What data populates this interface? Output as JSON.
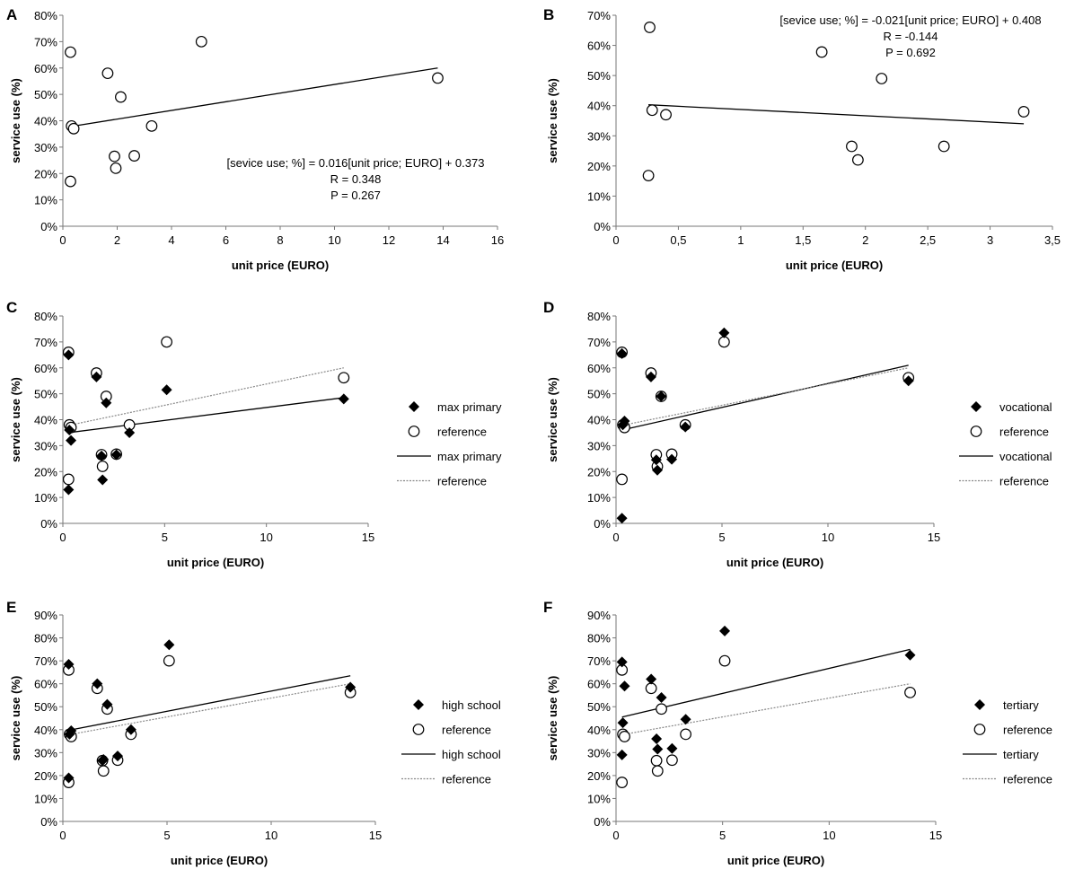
{
  "figure": {
    "background": "#ffffff",
    "ink": "#000000",
    "reference_line": "#888888"
  },
  "chart_data": [
    {
      "id": "A",
      "type": "scatter",
      "xlabel": "unit price (EURO)",
      "ylabel": "service use (%)",
      "xlim": [
        0,
        16
      ],
      "ylim": [
        0,
        0.8
      ],
      "xticks": [
        0,
        2,
        4,
        6,
        8,
        10,
        12,
        14,
        16
      ],
      "xtick_labels": [
        "0",
        "2",
        "4",
        "6",
        "8",
        "10",
        "12",
        "14",
        "16"
      ],
      "yticks": [
        0,
        0.1,
        0.2,
        0.3,
        0.4,
        0.5,
        0.6,
        0.7,
        0.8
      ],
      "ytick_labels": [
        "0%",
        "10%",
        "20%",
        "30%",
        "40%",
        "50%",
        "60%",
        "70%",
        "80%"
      ],
      "series": [
        {
          "name": "service use",
          "marker": "circle",
          "x": [
            0.28,
            0.28,
            0.32,
            0.4,
            1.65,
            1.9,
            1.95,
            2.13,
            2.63,
            3.27,
            5.1,
            13.8
          ],
          "y": [
            0.66,
            0.17,
            0.38,
            0.37,
            0.58,
            0.265,
            0.22,
            0.49,
            0.267,
            0.38,
            0.7,
            0.562
          ]
        }
      ],
      "trendlines": [
        {
          "x": [
            0.28,
            13.8
          ],
          "y": [
            0.378,
            0.6
          ],
          "style": "solid"
        }
      ],
      "annotation": [
        "[sevice use; %] = 0.016[unit price; EURO] + 0.373",
        "R = 0.348",
        "P = 0.267"
      ]
    },
    {
      "id": "B",
      "type": "scatter",
      "xlabel": "unit price (EURO)",
      "ylabel": "service use (%)",
      "xlim": [
        0,
        3.5
      ],
      "ylim": [
        0,
        0.7
      ],
      "xticks": [
        0,
        0.5,
        1,
        1.5,
        2,
        2.5,
        3,
        3.5
      ],
      "xtick_labels": [
        "0",
        "0,5",
        "1",
        "1,5",
        "2",
        "2,5",
        "3",
        "3,5"
      ],
      "yticks": [
        0,
        0.1,
        0.2,
        0.3,
        0.4,
        0.5,
        0.6,
        0.7
      ],
      "ytick_labels": [
        "0%",
        "10%",
        "20%",
        "30%",
        "40%",
        "50%",
        "60%",
        "70%"
      ],
      "series": [
        {
          "name": "service use",
          "marker": "circle",
          "x": [
            0.27,
            0.26,
            0.29,
            0.4,
            1.65,
            1.89,
            1.94,
            2.13,
            2.63,
            3.27
          ],
          "y": [
            0.66,
            0.168,
            0.385,
            0.37,
            0.578,
            0.265,
            0.22,
            0.49,
            0.265,
            0.38
          ]
        }
      ],
      "trendlines": [
        {
          "x": [
            0.26,
            3.27
          ],
          "y": [
            0.403,
            0.34
          ],
          "style": "solid"
        }
      ],
      "annotation": [
        "[sevice use; %] = -0.021[unit price; EURO] + 0.408",
        "R = -0.144",
        "P = 0.692"
      ]
    },
    {
      "id": "C",
      "type": "scatter",
      "xlabel": "unit price (EURO)",
      "ylabel": "service use (%)",
      "xlim": [
        0,
        15
      ],
      "ylim": [
        0,
        0.8
      ],
      "xticks": [
        0,
        5,
        10,
        15
      ],
      "xtick_labels": [
        "0",
        "5",
        "10",
        "15"
      ],
      "yticks": [
        0,
        0.1,
        0.2,
        0.3,
        0.4,
        0.5,
        0.6,
        0.7,
        0.8
      ],
      "ytick_labels": [
        "0%",
        "10%",
        "20%",
        "30%",
        "40%",
        "50%",
        "60%",
        "70%",
        "80%"
      ],
      "series": [
        {
          "name": "max primary",
          "marker": "diamond",
          "x": [
            0.28,
            0.28,
            0.32,
            0.4,
            1.65,
            1.9,
            1.95,
            2.13,
            2.63,
            3.27,
            5.1,
            13.8
          ],
          "y": [
            0.65,
            0.13,
            0.36,
            0.32,
            0.565,
            0.26,
            0.168,
            0.465,
            0.265,
            0.35,
            0.515,
            0.48
          ]
        },
        {
          "name": "reference",
          "marker": "circle",
          "x": [
            0.28,
            0.28,
            0.32,
            0.4,
            1.65,
            1.9,
            1.95,
            2.13,
            2.63,
            3.27,
            5.1,
            13.8
          ],
          "y": [
            0.66,
            0.17,
            0.38,
            0.37,
            0.58,
            0.265,
            0.22,
            0.49,
            0.267,
            0.38,
            0.7,
            0.562
          ]
        }
      ],
      "trendlines": [
        {
          "name": "max primary",
          "x": [
            0.28,
            13.8
          ],
          "y": [
            0.35,
            0.485
          ],
          "style": "solid"
        },
        {
          "name": "reference",
          "x": [
            0.28,
            13.8
          ],
          "y": [
            0.378,
            0.6
          ],
          "style": "dotted"
        }
      ],
      "legend": [
        "max primary",
        "reference",
        "max primary",
        "reference"
      ]
    },
    {
      "id": "D",
      "type": "scatter",
      "xlabel": "unit price (EURO)",
      "ylabel": "service use (%)",
      "xlim": [
        0,
        15
      ],
      "ylim": [
        0,
        0.8
      ],
      "xticks": [
        0,
        5,
        10,
        15
      ],
      "xtick_labels": [
        "0",
        "5",
        "10",
        "15"
      ],
      "yticks": [
        0,
        0.1,
        0.2,
        0.3,
        0.4,
        0.5,
        0.6,
        0.7,
        0.8
      ],
      "ytick_labels": [
        "0%",
        "10%",
        "20%",
        "30%",
        "40%",
        "50%",
        "60%",
        "70%",
        "80%"
      ],
      "series": [
        {
          "name": "vocational",
          "marker": "diamond",
          "x": [
            0.28,
            0.28,
            0.32,
            0.4,
            1.65,
            1.9,
            1.95,
            2.13,
            2.63,
            3.27,
            5.1,
            13.8
          ],
          "y": [
            0.655,
            0.02,
            0.38,
            0.395,
            0.565,
            0.245,
            0.205,
            0.49,
            0.247,
            0.372,
            0.735,
            0.55
          ]
        },
        {
          "name": "reference",
          "marker": "circle",
          "x": [
            0.28,
            0.28,
            0.32,
            0.4,
            1.65,
            1.9,
            1.95,
            2.13,
            2.63,
            3.27,
            5.1,
            13.8
          ],
          "y": [
            0.66,
            0.17,
            0.38,
            0.37,
            0.58,
            0.265,
            0.22,
            0.49,
            0.267,
            0.38,
            0.7,
            0.562
          ]
        }
      ],
      "trendlines": [
        {
          "name": "vocational",
          "x": [
            0.28,
            13.8
          ],
          "y": [
            0.36,
            0.61
          ],
          "style": "solid"
        },
        {
          "name": "reference",
          "x": [
            0.28,
            13.8
          ],
          "y": [
            0.378,
            0.6
          ],
          "style": "dotted"
        }
      ],
      "legend": [
        "vocational",
        "reference",
        "vocational",
        "reference"
      ]
    },
    {
      "id": "E",
      "type": "scatter",
      "xlabel": "unit price (EURO)",
      "ylabel": "service use (%)",
      "xlim": [
        0,
        15
      ],
      "ylim": [
        0,
        0.9
      ],
      "xticks": [
        0,
        5,
        10,
        15
      ],
      "xtick_labels": [
        "0",
        "5",
        "10",
        "15"
      ],
      "yticks": [
        0,
        0.1,
        0.2,
        0.3,
        0.4,
        0.5,
        0.6,
        0.7,
        0.8,
        0.9
      ],
      "ytick_labels": [
        "0%",
        "10%",
        "20%",
        "30%",
        "40%",
        "50%",
        "60%",
        "70%",
        "80%",
        "90%"
      ],
      "series": [
        {
          "name": "high school",
          "marker": "diamond",
          "x": [
            0.28,
            0.28,
            0.32,
            0.4,
            1.65,
            1.9,
            1.95,
            2.13,
            2.63,
            3.27,
            5.1,
            13.8
          ],
          "y": [
            0.685,
            0.19,
            0.38,
            0.395,
            0.6,
            0.265,
            0.27,
            0.51,
            0.285,
            0.4,
            0.77,
            0.585
          ]
        },
        {
          "name": "reference",
          "marker": "circle",
          "x": [
            0.28,
            0.28,
            0.32,
            0.4,
            1.65,
            1.9,
            1.95,
            2.13,
            2.63,
            3.27,
            5.1,
            13.8
          ],
          "y": [
            0.66,
            0.17,
            0.38,
            0.37,
            0.58,
            0.265,
            0.22,
            0.49,
            0.267,
            0.38,
            0.7,
            0.562
          ]
        }
      ],
      "trendlines": [
        {
          "name": "high school",
          "x": [
            0.28,
            13.8
          ],
          "y": [
            0.397,
            0.635
          ],
          "style": "solid"
        },
        {
          "name": "reference",
          "x": [
            0.28,
            13.8
          ],
          "y": [
            0.378,
            0.6
          ],
          "style": "dotted"
        }
      ],
      "legend": [
        "high school",
        "reference",
        "high school",
        "reference"
      ]
    },
    {
      "id": "F",
      "type": "scatter",
      "xlabel": "unit price (EURO)",
      "ylabel": "service use (%)",
      "xlim": [
        0,
        15
      ],
      "ylim": [
        0,
        0.9
      ],
      "xticks": [
        0,
        5,
        10,
        15
      ],
      "xtick_labels": [
        "0",
        "5",
        "10",
        "15"
      ],
      "yticks": [
        0,
        0.1,
        0.2,
        0.3,
        0.4,
        0.5,
        0.6,
        0.7,
        0.8,
        0.9
      ],
      "ytick_labels": [
        "0%",
        "10%",
        "20%",
        "30%",
        "40%",
        "50%",
        "60%",
        "70%",
        "80%",
        "90%"
      ],
      "series": [
        {
          "name": "tertiary",
          "marker": "diamond",
          "x": [
            0.28,
            0.28,
            0.32,
            0.4,
            1.65,
            1.9,
            1.95,
            2.13,
            2.63,
            3.27,
            5.1,
            13.8
          ],
          "y": [
            0.695,
            0.29,
            0.43,
            0.59,
            0.62,
            0.36,
            0.315,
            0.54,
            0.318,
            0.445,
            0.83,
            0.725
          ]
        },
        {
          "name": "reference",
          "marker": "circle",
          "x": [
            0.28,
            0.28,
            0.32,
            0.4,
            1.65,
            1.9,
            1.95,
            2.13,
            2.63,
            3.27,
            5.1,
            13.8
          ],
          "y": [
            0.66,
            0.17,
            0.38,
            0.37,
            0.58,
            0.265,
            0.22,
            0.49,
            0.267,
            0.38,
            0.7,
            0.562
          ]
        }
      ],
      "trendlines": [
        {
          "name": "tertiary",
          "x": [
            0.28,
            13.8
          ],
          "y": [
            0.455,
            0.75
          ],
          "style": "solid"
        },
        {
          "name": "reference",
          "x": [
            0.28,
            13.8
          ],
          "y": [
            0.378,
            0.6
          ],
          "style": "dotted"
        }
      ],
      "legend": [
        "tertiary",
        "reference",
        "tertiary",
        "reference"
      ]
    }
  ]
}
